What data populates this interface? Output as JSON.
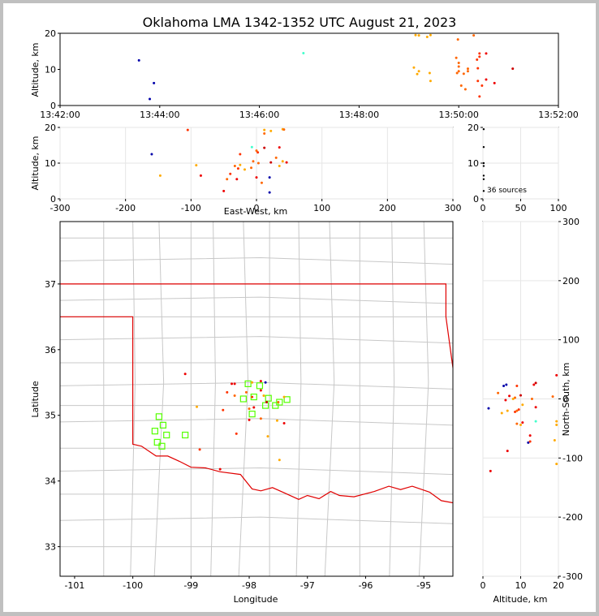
{
  "chart_data": [
    {
      "id": "time_alt",
      "type": "scatter",
      "title": "Oklahoma LMA 1342-1352 UTC August 21, 2023",
      "ylabel": "Altitude, km",
      "xlim": [
        0,
        600
      ],
      "ylim": [
        0,
        20
      ],
      "xticks": [
        {
          "v": 0,
          "label": "13:42:00"
        },
        {
          "v": 120,
          "label": "13:44:00"
        },
        {
          "v": 240,
          "label": "13:46:00"
        },
        {
          "v": 360,
          "label": "13:48:00"
        },
        {
          "v": 480,
          "label": "13:50:00"
        },
        {
          "v": 600,
          "label": "13:52:00"
        }
      ],
      "yticks": [
        0,
        10,
        20
      ],
      "points": [
        {
          "x": 95,
          "y": 12.5,
          "c": "#0000aa"
        },
        {
          "x": 113,
          "y": 6.2,
          "c": "#0000aa"
        },
        {
          "x": 108,
          "y": 1.8,
          "c": "#0000aa"
        },
        {
          "x": 293,
          "y": 14.5,
          "c": "#44ffcc"
        },
        {
          "x": 428,
          "y": 19.5,
          "c": "#ffaa00"
        },
        {
          "x": 432,
          "y": 19.4,
          "c": "#ffaa00"
        },
        {
          "x": 442,
          "y": 19.0,
          "c": "#ffaa00"
        },
        {
          "x": 446,
          "y": 19.5,
          "c": "#ffaa00"
        },
        {
          "x": 426,
          "y": 10.5,
          "c": "#ffaa00"
        },
        {
          "x": 432,
          "y": 9.5,
          "c": "#ffaa00"
        },
        {
          "x": 430,
          "y": 8.7,
          "c": "#ffaa00"
        },
        {
          "x": 445,
          "y": 9.0,
          "c": "#ffaa00"
        },
        {
          "x": 446,
          "y": 6.8,
          "c": "#ffaa00"
        },
        {
          "x": 477,
          "y": 13.2,
          "c": "#ff6600"
        },
        {
          "x": 479,
          "y": 18.3,
          "c": "#ff6600"
        },
        {
          "x": 480,
          "y": 11.8,
          "c": "#ff6600"
        },
        {
          "x": 480,
          "y": 10.8,
          "c": "#ff6600"
        },
        {
          "x": 478,
          "y": 9.0,
          "c": "#ff6600"
        },
        {
          "x": 480,
          "y": 9.5,
          "c": "#ff6600"
        },
        {
          "x": 483,
          "y": 5.5,
          "c": "#ff6600"
        },
        {
          "x": 486,
          "y": 8.8,
          "c": "#ff6600"
        },
        {
          "x": 488,
          "y": 4.5,
          "c": "#ff6600"
        },
        {
          "x": 491,
          "y": 9.5,
          "c": "#ff6600"
        },
        {
          "x": 491,
          "y": 10.2,
          "c": "#ff6600"
        },
        {
          "x": 498,
          "y": 19.4,
          "c": "#ff6600"
        },
        {
          "x": 502,
          "y": 12.7,
          "c": "#ff3300"
        },
        {
          "x": 505,
          "y": 14.4,
          "c": "#ff3300"
        },
        {
          "x": 505,
          "y": 13.5,
          "c": "#ff3300"
        },
        {
          "x": 503,
          "y": 10.3,
          "c": "#ff3300"
        },
        {
          "x": 503,
          "y": 6.8,
          "c": "#ff3300"
        },
        {
          "x": 505,
          "y": 2.5,
          "c": "#ff3300"
        },
        {
          "x": 508,
          "y": 5.5,
          "c": "#ff3300"
        },
        {
          "x": 513,
          "y": 14.4,
          "c": "#ee0000"
        },
        {
          "x": 513,
          "y": 7.2,
          "c": "#ee0000"
        },
        {
          "x": 523,
          "y": 6.2,
          "c": "#ee0000"
        },
        {
          "x": 545,
          "y": 10.2,
          "c": "#cc0000"
        }
      ]
    },
    {
      "id": "ew_alt",
      "type": "scatter",
      "ylabel": "Altitude, km",
      "xlabel": "East-West, km",
      "xlim": [
        -300,
        300
      ],
      "ylim": [
        0,
        20
      ],
      "xticks": [
        -300,
        -200,
        -100,
        0,
        100,
        200,
        300
      ],
      "yticks": [
        0,
        10,
        20
      ],
      "points": [
        {
          "x": -160,
          "y": 12.5,
          "c": "#0000aa"
        },
        {
          "x": 20,
          "y": 6.0,
          "c": "#0000aa"
        },
        {
          "x": 20,
          "y": 1.8,
          "c": "#0000aa"
        },
        {
          "x": -7,
          "y": 14.5,
          "c": "#44ffcc"
        },
        {
          "x": -147,
          "y": 6.5,
          "c": "#ffaa00"
        },
        {
          "x": -92,
          "y": 9.4,
          "c": "#ffaa00"
        },
        {
          "x": -105,
          "y": 19.3,
          "c": "#ff3300"
        },
        {
          "x": -85,
          "y": 6.5,
          "c": "#ee0000"
        },
        {
          "x": -50,
          "y": 2.2,
          "c": "#ee0000"
        },
        {
          "x": -45,
          "y": 5.5,
          "c": "#ff6600"
        },
        {
          "x": -40,
          "y": 7.0,
          "c": "#ff3300"
        },
        {
          "x": -33,
          "y": 9.2,
          "c": "#ff6600"
        },
        {
          "x": -28,
          "y": 8.5,
          "c": "#ff3300"
        },
        {
          "x": -30,
          "y": 5.5,
          "c": "#ee0000"
        },
        {
          "x": -25,
          "y": 9.5,
          "c": "#ffaa00"
        },
        {
          "x": -25,
          "y": 12.5,
          "c": "#ff3300"
        },
        {
          "x": -18,
          "y": 8.2,
          "c": "#ffaa00"
        },
        {
          "x": -8,
          "y": 8.7,
          "c": "#ff6600"
        },
        {
          "x": -5,
          "y": 10.5,
          "c": "#ff6600"
        },
        {
          "x": 0,
          "y": 13.5,
          "c": "#ff6600"
        },
        {
          "x": 2,
          "y": 13.0,
          "c": "#ff3300"
        },
        {
          "x": 0,
          "y": 6.0,
          "c": "#ee0000"
        },
        {
          "x": 3,
          "y": 10.0,
          "c": "#ff6600"
        },
        {
          "x": 8,
          "y": 4.5,
          "c": "#ff6600"
        },
        {
          "x": 12,
          "y": 14.3,
          "c": "#cc0000"
        },
        {
          "x": 12,
          "y": 18.3,
          "c": "#ff6600"
        },
        {
          "x": 12,
          "y": 19.3,
          "c": "#ffaa00"
        },
        {
          "x": 22,
          "y": 19.0,
          "c": "#ffaa00"
        },
        {
          "x": 22,
          "y": 10.2,
          "c": "#cc0000"
        },
        {
          "x": 30,
          "y": 11.5,
          "c": "#ff6600"
        },
        {
          "x": 35,
          "y": 14.4,
          "c": "#ee0000"
        },
        {
          "x": 35,
          "y": 9.2,
          "c": "#ffaa00"
        },
        {
          "x": 40,
          "y": 19.5,
          "c": "#ffaa00"
        },
        {
          "x": 40,
          "y": 10.5,
          "c": "#ffaa00"
        },
        {
          "x": 46,
          "y": 10.2,
          "c": "#ee0000"
        },
        {
          "x": 42,
          "y": 19.4,
          "c": "#ff6600"
        }
      ]
    },
    {
      "id": "histogram",
      "type": "bar",
      "annotation": "36 sources",
      "xlim": [
        0,
        100
      ],
      "ylim": [
        0,
        20
      ],
      "xticks": [
        0,
        50,
        100
      ],
      "yticks": [
        0,
        10,
        20
      ],
      "points": [
        {
          "x": 1,
          "y": 19.5
        },
        {
          "x": 1,
          "y": 14.5
        },
        {
          "x": 1,
          "y": 10.0
        },
        {
          "x": 1,
          "y": 9.2
        },
        {
          "x": 1,
          "y": 6.5
        },
        {
          "x": 1,
          "y": 5.5
        },
        {
          "x": 1,
          "y": 2.2
        }
      ]
    },
    {
      "id": "plan_view",
      "type": "scatter",
      "xlabel": "Longitude",
      "ylabel": "Latitude",
      "xlim": [
        -101.25,
        -94.5
      ],
      "ylim": [
        32.55,
        37.95
      ],
      "xticks": [
        -101,
        -100,
        -99,
        -98,
        -97,
        -96,
        -95
      ],
      "yticks": [
        33,
        34,
        35,
        36,
        37
      ],
      "points": [
        {
          "x": -99.1,
          "y": 35.63,
          "c": "#ee0000"
        },
        {
          "x": -98.9,
          "y": 35.13,
          "c": "#ffaa00"
        },
        {
          "x": -98.85,
          "y": 34.48,
          "c": "#ff3300"
        },
        {
          "x": -98.5,
          "y": 34.18,
          "c": "#ee0000"
        },
        {
          "x": -98.45,
          "y": 35.08,
          "c": "#ff3300"
        },
        {
          "x": -98.38,
          "y": 35.35,
          "c": "#ff3300"
        },
        {
          "x": -98.3,
          "y": 35.48,
          "c": "#ee0000"
        },
        {
          "x": -98.25,
          "y": 35.48,
          "c": "#ee0000"
        },
        {
          "x": -98.25,
          "y": 35.3,
          "c": "#ff6600"
        },
        {
          "x": -98.22,
          "y": 34.72,
          "c": "#ff3300"
        },
        {
          "x": -98.05,
          "y": 35.35,
          "c": "#ff6600"
        },
        {
          "x": -98.0,
          "y": 35.1,
          "c": "#ff6600"
        },
        {
          "x": -98.0,
          "y": 34.93,
          "c": "#ee0000"
        },
        {
          "x": -97.95,
          "y": 35.28,
          "c": "#ff3300"
        },
        {
          "x": -97.95,
          "y": 35.5,
          "c": "#ffaa00"
        },
        {
          "x": -97.92,
          "y": 35.12,
          "c": "#ee0000"
        },
        {
          "x": -97.8,
          "y": 35.52,
          "c": "#ee0000"
        },
        {
          "x": -97.8,
          "y": 35.38,
          "c": "#ee0000"
        },
        {
          "x": -97.8,
          "y": 34.95,
          "c": "#ff6600"
        },
        {
          "x": -97.75,
          "y": 35.3,
          "c": "#ffaa00"
        },
        {
          "x": -97.72,
          "y": 35.5,
          "c": "#0000aa"
        },
        {
          "x": -97.7,
          "y": 35.2,
          "c": "#cc0000"
        },
        {
          "x": -97.68,
          "y": 34.68,
          "c": "#ffaa00"
        },
        {
          "x": -97.52,
          "y": 34.92,
          "c": "#ffaa00"
        },
        {
          "x": -97.5,
          "y": 35.2,
          "c": "#ff6600"
        },
        {
          "x": -97.48,
          "y": 34.32,
          "c": "#ffaa00"
        },
        {
          "x": -97.4,
          "y": 34.88,
          "c": "#ee0000"
        },
        {
          "x": -97.4,
          "y": 35.28,
          "c": "#ffaa00"
        }
      ],
      "stations": [
        {
          "x": -99.62,
          "y": 34.76
        },
        {
          "x": -99.55,
          "y": 34.98
        },
        {
          "x": -99.48,
          "y": 34.85
        },
        {
          "x": -99.42,
          "y": 34.7
        },
        {
          "x": -99.58,
          "y": 34.59
        },
        {
          "x": -99.5,
          "y": 34.53
        },
        {
          "x": -99.1,
          "y": 34.7
        },
        {
          "x": -98.1,
          "y": 35.25
        },
        {
          "x": -98.02,
          "y": 35.48
        },
        {
          "x": -97.92,
          "y": 35.28
        },
        {
          "x": -97.95,
          "y": 35.02
        },
        {
          "x": -97.82,
          "y": 35.45
        },
        {
          "x": -97.72,
          "y": 35.15
        },
        {
          "x": -97.67,
          "y": 35.26
        },
        {
          "x": -97.55,
          "y": 35.15
        },
        {
          "x": -97.48,
          "y": 35.2
        },
        {
          "x": -97.35,
          "y": 35.24
        }
      ]
    },
    {
      "id": "alt_ns",
      "type": "scatter",
      "xlabel": "Altitude, km",
      "ylabel": "North-South, km",
      "xlim": [
        0,
        20
      ],
      "ylim": [
        -300,
        300
      ],
      "xticks": [
        0,
        10,
        20
      ],
      "yticks": [
        -300,
        -200,
        -100,
        0,
        100,
        200,
        300
      ],
      "points": [
        {
          "x": 1.5,
          "y": -16,
          "c": "#0000aa"
        },
        {
          "x": 5.5,
          "y": 22,
          "c": "#0000aa"
        },
        {
          "x": 6.2,
          "y": 24,
          "c": "#0000aa"
        },
        {
          "x": 2,
          "y": -122,
          "c": "#ee0000"
        },
        {
          "x": 4,
          "y": 10,
          "c": "#ff6600"
        },
        {
          "x": 5,
          "y": -24,
          "c": "#ffaa00"
        },
        {
          "x": 6,
          "y": -2,
          "c": "#ee0000"
        },
        {
          "x": 6.5,
          "y": -88,
          "c": "#ee0000"
        },
        {
          "x": 6.5,
          "y": -20,
          "c": "#ffaa00"
        },
        {
          "x": 7,
          "y": 5,
          "c": "#ee0000"
        },
        {
          "x": 8,
          "y": 0,
          "c": "#ffaa00"
        },
        {
          "x": 8.5,
          "y": 2,
          "c": "#ff6600"
        },
        {
          "x": 8.5,
          "y": -22,
          "c": "#ff3300"
        },
        {
          "x": 9,
          "y": -20,
          "c": "#ff6600"
        },
        {
          "x": 9,
          "y": -42,
          "c": "#ff6600"
        },
        {
          "x": 9,
          "y": 22,
          "c": "#ff3300"
        },
        {
          "x": 9.5,
          "y": -18,
          "c": "#ff3300"
        },
        {
          "x": 10,
          "y": -44,
          "c": "#ffaa00"
        },
        {
          "x": 10,
          "y": 6,
          "c": "#cc0000"
        },
        {
          "x": 10.5,
          "y": -40,
          "c": "#ee0000"
        },
        {
          "x": 10.5,
          "y": -10,
          "c": "#ffaa00"
        },
        {
          "x": 12,
          "y": -74,
          "c": "#0000aa"
        },
        {
          "x": 12.5,
          "y": -62,
          "c": "#ee0000"
        },
        {
          "x": 12.5,
          "y": -72,
          "c": "#ff3300"
        },
        {
          "x": 13,
          "y": 0,
          "c": "#ff6600"
        },
        {
          "x": 13.5,
          "y": 24,
          "c": "#ee0000"
        },
        {
          "x": 14,
          "y": 27,
          "c": "#cc0000"
        },
        {
          "x": 14,
          "y": -38,
          "c": "#44ffcc"
        },
        {
          "x": 14,
          "y": -14,
          "c": "#ee0000"
        },
        {
          "x": 18.5,
          "y": 4,
          "c": "#ff6600"
        },
        {
          "x": 19,
          "y": -70,
          "c": "#ffaa00"
        },
        {
          "x": 19.5,
          "y": -110,
          "c": "#ffaa00"
        },
        {
          "x": 19.5,
          "y": -38,
          "c": "#ffaa00"
        },
        {
          "x": 19.5,
          "y": -44,
          "c": "#ffaa00"
        },
        {
          "x": 19.5,
          "y": 40,
          "c": "#ee0000"
        }
      ]
    }
  ]
}
